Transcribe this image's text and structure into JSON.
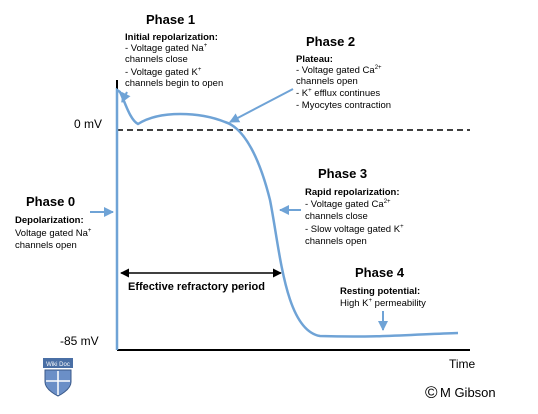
{
  "axis": {
    "zero_label": "0 mV",
    "rest_label": "-85 mV",
    "x_label": "Time"
  },
  "colors": {
    "curve": "#6fa3d6",
    "arrow": "#6fa3d6",
    "axis": "#000000"
  },
  "phase1": {
    "title": "Phase 1",
    "subtitle": "Initial repolarization:",
    "lines": [
      [
        "- Voltage gated Na",
        "+"
      ],
      [
        "channels close",
        ""
      ],
      [
        "- Voltage gated K",
        "+"
      ],
      [
        "channels begin to open",
        ""
      ]
    ]
  },
  "phase2": {
    "title": "Phase 2",
    "subtitle": "Plateau:",
    "lines": [
      [
        "- Voltage gated Ca",
        "2+"
      ],
      [
        "channels open",
        ""
      ],
      [
        "- K",
        "+",
        " efflux continues"
      ],
      [
        "- Myocytes contraction",
        ""
      ]
    ]
  },
  "phase0": {
    "title": "Phase 0",
    "subtitle": "Depolarization:",
    "lines": [
      [
        "Voltage gated Na",
        "+"
      ],
      [
        "channels open",
        ""
      ]
    ]
  },
  "phase3": {
    "title": "Phase 3",
    "subtitle": "Rapid repolarization:",
    "lines": [
      [
        "- Voltage gated Ca",
        "2+"
      ],
      [
        "channels close",
        ""
      ],
      [
        "- Slow voltage gated K",
        "+"
      ],
      [
        "channels open",
        ""
      ]
    ]
  },
  "phase4": {
    "title": "Phase 4",
    "subtitle": "Resting potential:",
    "lines": [
      [
        "High K",
        "+",
        " permeability"
      ]
    ]
  },
  "erp_label": "Effective refractory period",
  "logo_text": "Wiki Doc",
  "credit": "M Gibson",
  "credit_symbol": "©"
}
